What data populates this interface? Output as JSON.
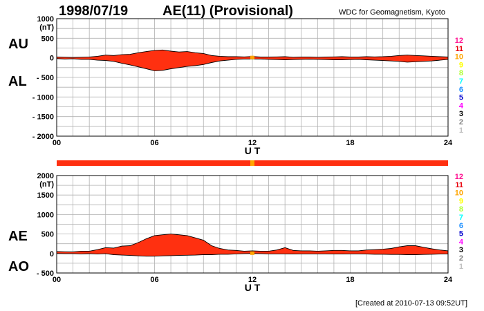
{
  "header": {
    "date": "1998/07/19",
    "title": "AE(11) (Provisional)",
    "source": "WDC for Geomagnetism, Kyoto"
  },
  "footer": {
    "created": "[Created at 2010-07-13 09:52UT]"
  },
  "station_count_scale": {
    "labels": [
      "12",
      "11",
      "10",
      "9",
      "8",
      "7",
      "6",
      "5",
      "4",
      "3",
      "2",
      "1"
    ],
    "colors": [
      "#ff1493",
      "#e8000b",
      "#ffa500",
      "#ffff00",
      "#adff2f",
      "#00ffff",
      "#1e90ff",
      "#0000cd",
      "#ff00ff",
      "#000000",
      "#808080",
      "#c0c0c0"
    ]
  },
  "chart_data": [
    {
      "type": "area",
      "panel": "AU/AL",
      "series_labels": {
        "upper": "AU",
        "lower": "AL"
      },
      "unit_label": "(nT)",
      "xlabel": "U T",
      "x_ticks": [
        "00",
        "06",
        "12",
        "18",
        "24"
      ],
      "xlim": [
        0,
        24
      ],
      "ylim": [
        -2000,
        1000
      ],
      "y_ticks": [
        "1000",
        "500",
        "0",
        "- 500",
        "- 1000",
        "- 1500",
        "- 2000"
      ],
      "y_tick_values": [
        1000,
        500,
        0,
        -500,
        -1000,
        -1500,
        -2000
      ],
      "fill_color": "#ff3010",
      "grid": true,
      "x": [
        0,
        0.5,
        1,
        1.5,
        2,
        2.5,
        3,
        3.5,
        4,
        4.5,
        5,
        5.5,
        6,
        6.5,
        7,
        7.5,
        8,
        8.5,
        9,
        9.5,
        10,
        10.5,
        11,
        11.5,
        12,
        12.5,
        13,
        13.5,
        14,
        14.5,
        15,
        15.5,
        16,
        16.5,
        17,
        17.5,
        18,
        18.5,
        19,
        19.5,
        20,
        20.5,
        21,
        21.5,
        22,
        22.5,
        23,
        23.5,
        24
      ],
      "upper": [
        20,
        15,
        10,
        15,
        20,
        40,
        70,
        60,
        80,
        90,
        130,
        160,
        190,
        200,
        170,
        150,
        160,
        130,
        110,
        60,
        40,
        30,
        30,
        25,
        35,
        20,
        20,
        25,
        30,
        15,
        20,
        20,
        15,
        20,
        25,
        30,
        20,
        20,
        30,
        25,
        30,
        40,
        60,
        70,
        60,
        50,
        40,
        30,
        20
      ],
      "lower": [
        -20,
        -30,
        -25,
        -40,
        -40,
        -60,
        -70,
        -90,
        -140,
        -180,
        -230,
        -280,
        -330,
        -320,
        -280,
        -250,
        -220,
        -200,
        -170,
        -120,
        -80,
        -60,
        -40,
        -30,
        -30,
        -30,
        -40,
        -45,
        -50,
        -45,
        -40,
        -35,
        -40,
        -45,
        -50,
        -50,
        -45,
        -40,
        -50,
        -60,
        -70,
        -80,
        -90,
        -110,
        -100,
        -90,
        -80,
        -60,
        -40
      ]
    },
    {
      "type": "area",
      "panel": "AE/AO",
      "series_labels": {
        "upper": "AE",
        "lower": "AO"
      },
      "unit_label": "(nT)",
      "xlabel": "U T",
      "x_ticks": [
        "00",
        "06",
        "12",
        "18",
        "24"
      ],
      "xlim": [
        0,
        24
      ],
      "ylim": [
        -500,
        2000
      ],
      "y_ticks": [
        "2000",
        "1500",
        "1000",
        "500",
        "0",
        "- 500"
      ],
      "y_tick_values": [
        2000,
        1500,
        1000,
        500,
        0,
        -500
      ],
      "fill_color": "#ff3010",
      "grid": true,
      "x": [
        0,
        0.5,
        1,
        1.5,
        2,
        2.5,
        3,
        3.5,
        4,
        4.5,
        5,
        5.5,
        6,
        6.5,
        7,
        7.5,
        8,
        8.5,
        9,
        9.5,
        10,
        10.5,
        11,
        11.5,
        12,
        12.5,
        13,
        13.5,
        14,
        14.5,
        15,
        15.5,
        16,
        16.5,
        17,
        17.5,
        18,
        18.5,
        19,
        19.5,
        20,
        20.5,
        21,
        21.5,
        22,
        22.5,
        23,
        23.5,
        24
      ],
      "upper": [
        50,
        45,
        40,
        60,
        60,
        100,
        150,
        140,
        190,
        200,
        280,
        380,
        460,
        480,
        500,
        480,
        460,
        400,
        340,
        200,
        130,
        90,
        80,
        60,
        70,
        60,
        60,
        90,
        150,
        80,
        70,
        70,
        60,
        70,
        80,
        80,
        70,
        70,
        90,
        100,
        110,
        130,
        170,
        200,
        200,
        160,
        120,
        90,
        70
      ],
      "lower": [
        0,
        -5,
        -5,
        -10,
        -5,
        -15,
        -5,
        -30,
        -40,
        -50,
        -60,
        -70,
        -70,
        -60,
        -55,
        -50,
        -45,
        -40,
        -30,
        -30,
        -20,
        -20,
        -10,
        -5,
        0,
        -5,
        -10,
        -10,
        -10,
        -15,
        -10,
        -10,
        -10,
        -10,
        -15,
        -15,
        -10,
        -10,
        -15,
        -20,
        -20,
        -25,
        -25,
        -30,
        -30,
        -25,
        -20,
        -15,
        -10
      ]
    }
  ]
}
